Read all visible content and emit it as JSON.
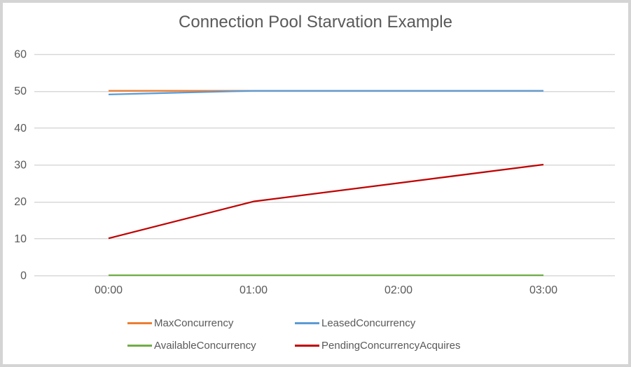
{
  "chart_data": {
    "type": "line",
    "title": "Connection Pool Starvation Example",
    "categories": [
      "00:00",
      "01:00",
      "02:00",
      "03:00"
    ],
    "series": [
      {
        "name": "MaxConcurrency",
        "color": "#ED7D31",
        "values": [
          50,
          50,
          50,
          50
        ]
      },
      {
        "name": "LeasedConcurrency",
        "color": "#5B9BD5",
        "values": [
          49,
          50,
          50,
          50
        ]
      },
      {
        "name": "AvailableConcurrency",
        "color": "#70AD47",
        "values": [
          0,
          0,
          0,
          0
        ]
      },
      {
        "name": "PendingConcurrencyAcquires",
        "color": "#C00000",
        "values": [
          10,
          20,
          25,
          30
        ]
      }
    ],
    "ylim": [
      0,
      60
    ],
    "yticks": [
      0,
      10,
      20,
      30,
      40,
      50,
      60
    ],
    "xlabel": "",
    "ylabel": "",
    "grid": "horizontal",
    "gridline_color": "#D9D9D9",
    "axis_text_color": "#595959",
    "background_color": "#FFFFFF",
    "border_color": "#D4D4D4",
    "legend_position": "bottom",
    "legend_rows": [
      [
        "MaxConcurrency",
        "LeasedConcurrency"
      ],
      [
        "AvailableConcurrency",
        "PendingConcurrencyAcquires"
      ]
    ]
  }
}
